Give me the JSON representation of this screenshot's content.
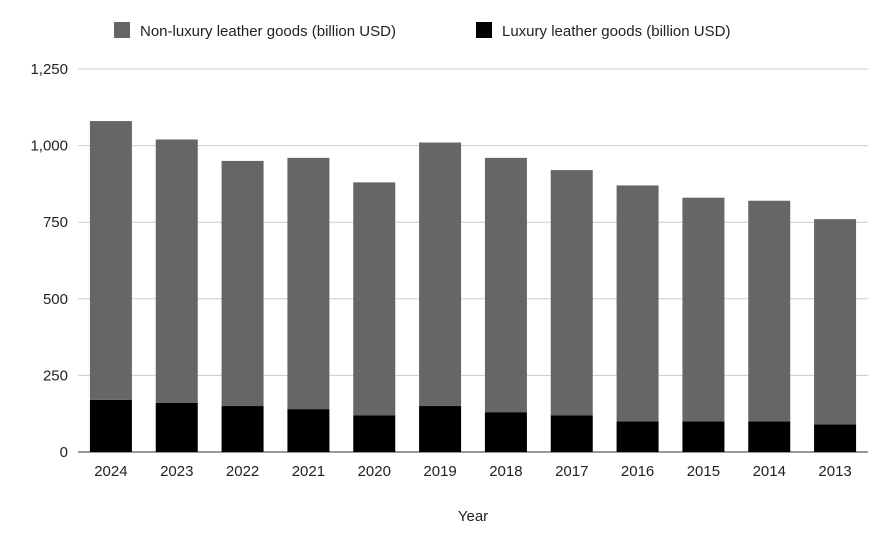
{
  "chart_data": {
    "type": "bar",
    "stacked": true,
    "title": "",
    "xlabel": "Year",
    "ylabel": "",
    "ylim": [
      0,
      1250
    ],
    "yticks": [
      "0",
      "250",
      "500",
      "750",
      "1,000",
      "1,250"
    ],
    "ytick_values": [
      0,
      250,
      500,
      750,
      1000,
      1250
    ],
    "grid": true,
    "legend_position": "top",
    "categories": [
      "2024",
      "2023",
      "2022",
      "2021",
      "2020",
      "2019",
      "2018",
      "2017",
      "2016",
      "2015",
      "2014",
      "2013"
    ],
    "series": [
      {
        "name": "Luxury leather goods (billion USD)",
        "color": "#000000",
        "values": [
          170,
          160,
          150,
          140,
          120,
          150,
          130,
          120,
          100,
          100,
          100,
          90
        ]
      },
      {
        "name": "Non-luxury leather goods (billion USD)",
        "color": "#666666",
        "values": [
          910,
          860,
          800,
          820,
          760,
          860,
          830,
          800,
          770,
          730,
          720,
          670
        ]
      }
    ],
    "legend_order": [
      1,
      0
    ]
  }
}
